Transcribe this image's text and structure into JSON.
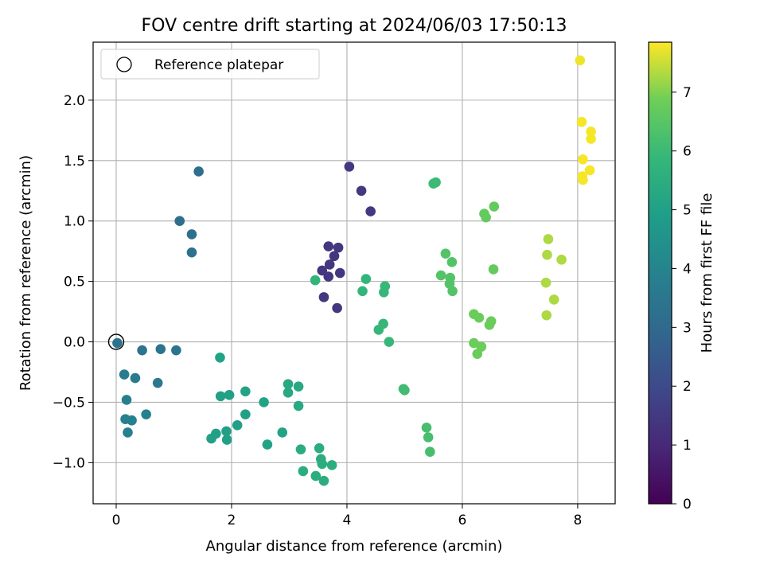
{
  "chart_data": {
    "type": "scatter",
    "title": "FOV centre drift starting at 2024/06/03 17:50:13",
    "xlabel": "Angular distance from reference (arcmin)",
    "ylabel": "Rotation from reference (arcmin)",
    "xlim": [
      -0.4,
      8.65
    ],
    "ylim": [
      -1.34,
      2.48
    ],
    "xticks": [
      0,
      2,
      4,
      6,
      8
    ],
    "yticks": [
      -1.0,
      -0.5,
      0.0,
      0.5,
      1.0,
      1.5,
      2.0
    ],
    "grid": true,
    "legend": {
      "position": "top-left",
      "entries": [
        "Reference platepar"
      ]
    },
    "reference_point": {
      "x": 0.0,
      "y": 0.0
    },
    "colorbar": {
      "label": "Hours from first FF file",
      "range": [
        0,
        7.85
      ],
      "ticks": [
        0,
        1,
        2,
        3,
        4,
        5,
        6,
        7
      ],
      "colormap": "viridis"
    },
    "series": [
      {
        "points": [
          {
            "x": 4.04,
            "y": 1.45,
            "c": 1.5
          },
          {
            "x": 4.25,
            "y": 1.25,
            "c": 1.5
          },
          {
            "x": 4.41,
            "y": 1.08,
            "c": 1.5
          },
          {
            "x": 3.68,
            "y": 0.79,
            "c": 1.4
          },
          {
            "x": 3.85,
            "y": 0.78,
            "c": 1.4
          },
          {
            "x": 3.78,
            "y": 0.71,
            "c": 1.4
          },
          {
            "x": 3.7,
            "y": 0.64,
            "c": 1.4
          },
          {
            "x": 3.57,
            "y": 0.59,
            "c": 1.4
          },
          {
            "x": 3.88,
            "y": 0.57,
            "c": 1.4
          },
          {
            "x": 3.68,
            "y": 0.54,
            "c": 1.4
          },
          {
            "x": 3.6,
            "y": 0.37,
            "c": 1.4
          },
          {
            "x": 3.83,
            "y": 0.28,
            "c": 1.4
          },
          {
            "x": 1.43,
            "y": 1.41,
            "c": 3.2
          },
          {
            "x": 1.1,
            "y": 1.0,
            "c": 3.2
          },
          {
            "x": 1.31,
            "y": 0.89,
            "c": 3.2
          },
          {
            "x": 1.31,
            "y": 0.74,
            "c": 3.3
          },
          {
            "x": 0.02,
            "y": -0.01,
            "c": 3.4
          },
          {
            "x": 0.45,
            "y": -0.07,
            "c": 3.4
          },
          {
            "x": 0.77,
            "y": -0.06,
            "c": 3.4
          },
          {
            "x": 1.04,
            "y": -0.07,
            "c": 3.4
          },
          {
            "x": 0.14,
            "y": -0.27,
            "c": 3.7
          },
          {
            "x": 0.33,
            "y": -0.3,
            "c": 3.7
          },
          {
            "x": 0.72,
            "y": -0.34,
            "c": 3.6
          },
          {
            "x": 0.18,
            "y": -0.48,
            "c": 3.8
          },
          {
            "x": 0.52,
            "y": -0.6,
            "c": 3.9
          },
          {
            "x": 0.16,
            "y": -0.64,
            "c": 3.9
          },
          {
            "x": 0.27,
            "y": -0.65,
            "c": 3.9
          },
          {
            "x": 0.2,
            "y": -0.75,
            "c": 3.9
          },
          {
            "x": 1.8,
            "y": -0.13,
            "c": 5.1
          },
          {
            "x": 1.81,
            "y": -0.45,
            "c": 5.0
          },
          {
            "x": 1.96,
            "y": -0.44,
            "c": 5.0
          },
          {
            "x": 2.24,
            "y": -0.41,
            "c": 5.1
          },
          {
            "x": 2.24,
            "y": -0.6,
            "c": 5.0
          },
          {
            "x": 2.1,
            "y": -0.69,
            "c": 5.0
          },
          {
            "x": 1.91,
            "y": -0.74,
            "c": 5.0
          },
          {
            "x": 1.73,
            "y": -0.76,
            "c": 5.0
          },
          {
            "x": 1.65,
            "y": -0.8,
            "c": 5.0
          },
          {
            "x": 1.92,
            "y": -0.81,
            "c": 5.0
          },
          {
            "x": 2.56,
            "y": -0.5,
            "c": 5.1
          },
          {
            "x": 2.62,
            "y": -0.85,
            "c": 5.1
          },
          {
            "x": 2.88,
            "y": -0.75,
            "c": 5.1
          },
          {
            "x": 2.98,
            "y": -0.35,
            "c": 5.3
          },
          {
            "x": 2.98,
            "y": -0.42,
            "c": 5.3
          },
          {
            "x": 3.16,
            "y": -0.37,
            "c": 5.3
          },
          {
            "x": 3.16,
            "y": -0.53,
            "c": 5.3
          },
          {
            "x": 3.2,
            "y": -0.89,
            "c": 5.4
          },
          {
            "x": 3.52,
            "y": -0.88,
            "c": 5.5
          },
          {
            "x": 3.55,
            "y": -0.97,
            "c": 5.5
          },
          {
            "x": 3.57,
            "y": -1.01,
            "c": 5.5
          },
          {
            "x": 3.74,
            "y": -1.02,
            "c": 5.5
          },
          {
            "x": 3.24,
            "y": -1.07,
            "c": 5.5
          },
          {
            "x": 3.46,
            "y": -1.11,
            "c": 5.5
          },
          {
            "x": 3.6,
            "y": -1.15,
            "c": 5.5
          },
          {
            "x": 3.45,
            "y": 0.51,
            "c": 5.8
          },
          {
            "x": 4.27,
            "y": 0.42,
            "c": 5.8
          },
          {
            "x": 4.33,
            "y": 0.52,
            "c": 5.8
          },
          {
            "x": 4.66,
            "y": 0.46,
            "c": 5.9
          },
          {
            "x": 4.64,
            "y": 0.41,
            "c": 5.9
          },
          {
            "x": 4.63,
            "y": 0.15,
            "c": 5.9
          },
          {
            "x": 4.55,
            "y": 0.1,
            "c": 5.9
          },
          {
            "x": 4.73,
            "y": 0.0,
            "c": 5.9
          },
          {
            "x": 4.98,
            "y": -0.39,
            "c": 6.1
          },
          {
            "x": 5.0,
            "y": -0.4,
            "c": 6.1
          },
          {
            "x": 5.5,
            "y": 1.31,
            "c": 6.0
          },
          {
            "x": 5.54,
            "y": 1.32,
            "c": 6.0
          },
          {
            "x": 5.38,
            "y": -0.71,
            "c": 6.2
          },
          {
            "x": 5.41,
            "y": -0.79,
            "c": 6.2
          },
          {
            "x": 5.44,
            "y": -0.91,
            "c": 6.2
          },
          {
            "x": 5.71,
            "y": 0.73,
            "c": 6.4
          },
          {
            "x": 5.63,
            "y": 0.55,
            "c": 6.4
          },
          {
            "x": 5.79,
            "y": 0.53,
            "c": 6.4
          },
          {
            "x": 5.78,
            "y": 0.48,
            "c": 6.4
          },
          {
            "x": 5.83,
            "y": 0.42,
            "c": 6.4
          },
          {
            "x": 5.82,
            "y": 0.66,
            "c": 6.4
          },
          {
            "x": 6.38,
            "y": 1.06,
            "c": 6.7
          },
          {
            "x": 6.41,
            "y": 1.03,
            "c": 6.7
          },
          {
            "x": 6.55,
            "y": 1.12,
            "c": 6.7
          },
          {
            "x": 6.54,
            "y": 0.6,
            "c": 6.7
          },
          {
            "x": 6.2,
            "y": 0.23,
            "c": 6.8
          },
          {
            "x": 6.29,
            "y": 0.2,
            "c": 6.8
          },
          {
            "x": 6.47,
            "y": 0.14,
            "c": 6.8
          },
          {
            "x": 6.5,
            "y": 0.17,
            "c": 6.8
          },
          {
            "x": 6.2,
            "y": -0.01,
            "c": 6.8
          },
          {
            "x": 6.33,
            "y": -0.04,
            "c": 6.8
          },
          {
            "x": 6.26,
            "y": -0.1,
            "c": 6.8
          },
          {
            "x": 7.49,
            "y": 0.85,
            "c": 7.3
          },
          {
            "x": 7.47,
            "y": 0.72,
            "c": 7.3
          },
          {
            "x": 7.72,
            "y": 0.68,
            "c": 7.3
          },
          {
            "x": 7.45,
            "y": 0.49,
            "c": 7.3
          },
          {
            "x": 7.59,
            "y": 0.35,
            "c": 7.3
          },
          {
            "x": 7.46,
            "y": 0.22,
            "c": 7.3
          },
          {
            "x": 8.04,
            "y": 2.33,
            "c": 7.75
          },
          {
            "x": 8.07,
            "y": 1.82,
            "c": 7.8
          },
          {
            "x": 8.23,
            "y": 1.74,
            "c": 7.8
          },
          {
            "x": 8.23,
            "y": 1.68,
            "c": 7.8
          },
          {
            "x": 8.09,
            "y": 1.51,
            "c": 7.8
          },
          {
            "x": 8.21,
            "y": 1.42,
            "c": 7.8
          },
          {
            "x": 8.08,
            "y": 1.37,
            "c": 7.8
          },
          {
            "x": 8.09,
            "y": 1.34,
            "c": 7.8
          }
        ]
      }
    ]
  }
}
